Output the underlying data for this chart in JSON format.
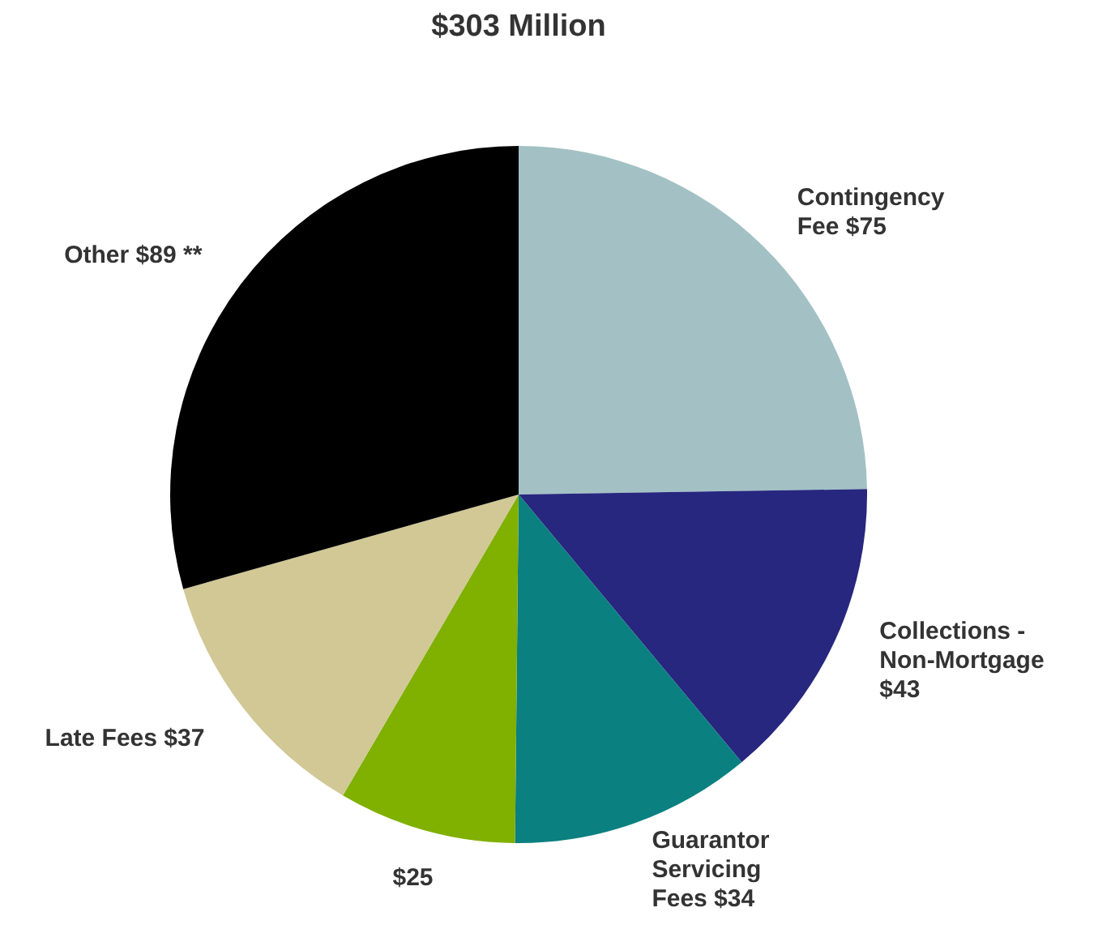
{
  "chart_data": {
    "type": "pie",
    "title": "$303 Million",
    "categories": [
      "Contingency Fee",
      "Collections - Non-Mortgage",
      "Guarantor Servicing Fees",
      null,
      "Late Fees",
      "Other"
    ],
    "values": [
      75,
      43,
      34,
      25,
      37,
      89
    ],
    "value_labels": [
      "$75",
      "$43",
      "$34",
      "$25",
      "$37",
      "$89 **"
    ],
    "colors": [
      "#a3c1c4",
      "#27277f",
      "#0a8080",
      "#80b000",
      "#d1c896",
      "#000000"
    ]
  }
}
